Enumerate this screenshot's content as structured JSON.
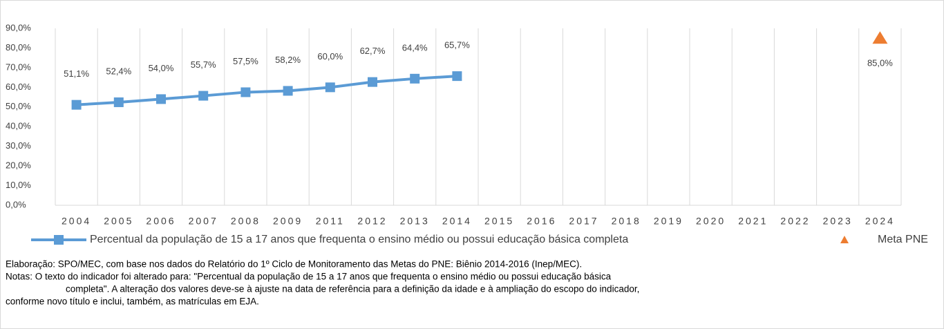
{
  "chart_data": {
    "type": "line",
    "categories": [
      "2004",
      "2005",
      "2006",
      "2007",
      "2008",
      "2009",
      "2011",
      "2012",
      "2013",
      "2014",
      "2015",
      "2016",
      "2017",
      "2018",
      "2019",
      "2020",
      "2021",
      "2022",
      "2023",
      "2024"
    ],
    "series": [
      {
        "name": "Percentual da população de 15 a 17 anos que frequenta o ensino médio ou possui educação básica completa",
        "color": "#5b9bd5",
        "values": [
          51.1,
          52.4,
          54.0,
          55.7,
          57.5,
          58.2,
          60.0,
          62.7,
          64.4,
          65.7,
          null,
          null,
          null,
          null,
          null,
          null,
          null,
          null,
          null,
          null
        ],
        "value_labels": [
          "51,1%",
          "52,4%",
          "54,0%",
          "55,7%",
          "57,5%",
          "58,2%",
          "60,0%",
          "62,7%",
          "64,4%",
          "65,7%",
          null,
          null,
          null,
          null,
          null,
          null,
          null,
          null,
          null,
          null
        ]
      },
      {
        "name": "Meta PNE",
        "color": "#ed7d31",
        "marker": "triangle",
        "values": [
          null,
          null,
          null,
          null,
          null,
          null,
          null,
          null,
          null,
          null,
          null,
          null,
          null,
          null,
          null,
          null,
          null,
          null,
          null,
          85.0
        ],
        "value_labels": [
          null,
          null,
          null,
          null,
          null,
          null,
          null,
          null,
          null,
          null,
          null,
          null,
          null,
          null,
          null,
          null,
          null,
          null,
          null,
          "85,0%"
        ]
      }
    ],
    "ylim": [
      0,
      90
    ],
    "yticks": [
      {
        "value": 0,
        "label": "0,0%"
      },
      {
        "value": 10,
        "label": "10,0%"
      },
      {
        "value": 20,
        "label": "20,0%"
      },
      {
        "value": 30,
        "label": "30,0%"
      },
      {
        "value": 40,
        "label": "40,0%"
      },
      {
        "value": 50,
        "label": "50,0%"
      },
      {
        "value": 60,
        "label": "60,0%"
      },
      {
        "value": 70,
        "label": "70,0%"
      },
      {
        "value": 80,
        "label": "80,0%"
      },
      {
        "value": 90,
        "label": "90,0%"
      }
    ],
    "grid": "x",
    "legend": "bottom",
    "notes": [
      "Elaboração: SPO/MEC,   com base nos dados do Relatório do 1º Ciclo de Monitoramento  das Metas do PNE:  Biênio 2014-2016 (Inep/MEC).",
      "Notas: O texto do indicador foi alterado para: \"Percentual da população de 15 a 17 anos que frequenta o ensino médio ou possui educação básica",
      "completa\".  A alteração dos valores deve-se à ajuste na data de referência para a definição da idade e à ampliação do escopo do indicador,",
      "conforme novo título e inclui, também, as matrículas em EJA."
    ]
  }
}
